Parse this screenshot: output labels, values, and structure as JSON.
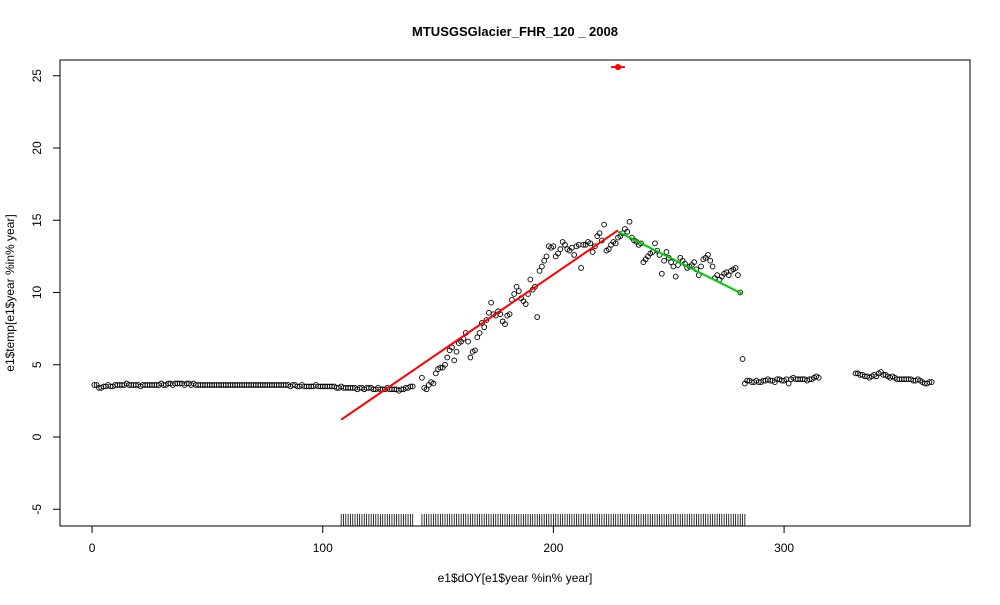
{
  "chart_data": {
    "type": "scatter",
    "title": "MTUSGSGlacier_FHR_120 _ 2008",
    "x_label": "e1$dOY[e1$year %in% year]",
    "y_label": "e1$temp[e1$year %in% year]",
    "xlim": [
      -13.9,
      380.6
    ],
    "ylim": [
      -6.16,
      26.09
    ],
    "xticks": [
      0,
      100,
      200,
      300
    ],
    "yticks": [
      -5,
      0,
      5,
      10,
      15,
      20,
      25
    ],
    "series": [
      {
        "kind": "points",
        "color": "#000000",
        "x": [
          1,
          2,
          3,
          4,
          5,
          6,
          7,
          8,
          9,
          10,
          11,
          12,
          13,
          14,
          15,
          16,
          17,
          18,
          19,
          20,
          21,
          22,
          23,
          24,
          25,
          26,
          27,
          28,
          29,
          30,
          31,
          32,
          33,
          34,
          35,
          36,
          37,
          38,
          39,
          40,
          41,
          42,
          43,
          44,
          45,
          46,
          47,
          48,
          49,
          50,
          51,
          52,
          53,
          54,
          55,
          56,
          57,
          58,
          59,
          60,
          61,
          62,
          63,
          64,
          65,
          66,
          67,
          68,
          69,
          70,
          71,
          72,
          73,
          74,
          75,
          76,
          77,
          78,
          79,
          80,
          81,
          82,
          83,
          84,
          85,
          86,
          87,
          88,
          89,
          90,
          91,
          92,
          93,
          94,
          95,
          96,
          97,
          98,
          99,
          100,
          101,
          102,
          103,
          104,
          105,
          106,
          107,
          108,
          109,
          110,
          111,
          112,
          113,
          114,
          115,
          116,
          117,
          118,
          119,
          120,
          121,
          122,
          123,
          124,
          125,
          126,
          127,
          128,
          129,
          130,
          131,
          132,
          133,
          134,
          135,
          136,
          137,
          138,
          139
        ],
        "values": [
          3.6,
          3.6,
          3.4,
          3.4,
          3.5,
          3.5,
          3.6,
          3.5,
          3.5,
          3.6,
          3.6,
          3.6,
          3.6,
          3.6,
          3.7,
          3.6,
          3.6,
          3.6,
          3.6,
          3.6,
          3.5,
          3.6,
          3.6,
          3.6,
          3.6,
          3.6,
          3.6,
          3.6,
          3.6,
          3.7,
          3.6,
          3.6,
          3.7,
          3.7,
          3.6,
          3.7,
          3.7,
          3.7,
          3.7,
          3.6,
          3.7,
          3.7,
          3.6,
          3.7,
          3.6,
          3.6,
          3.6,
          3.6,
          3.6,
          3.6,
          3.6,
          3.6,
          3.6,
          3.6,
          3.6,
          3.6,
          3.6,
          3.6,
          3.6,
          3.6,
          3.6,
          3.6,
          3.6,
          3.6,
          3.6,
          3.6,
          3.6,
          3.6,
          3.6,
          3.6,
          3.6,
          3.6,
          3.6,
          3.6,
          3.6,
          3.6,
          3.6,
          3.6,
          3.6,
          3.6,
          3.6,
          3.6,
          3.6,
          3.6,
          3.6,
          3.5,
          3.6,
          3.6,
          3.5,
          3.5,
          3.6,
          3.5,
          3.5,
          3.5,
          3.5,
          3.5,
          3.6,
          3.5,
          3.5,
          3.5,
          3.5,
          3.5,
          3.5,
          3.5,
          3.5,
          3.4,
          3.4,
          3.5,
          3.4,
          3.4,
          3.4,
          3.4,
          3.4,
          3.4,
          3.3,
          3.4,
          3.4,
          3.3,
          3.4,
          3.4,
          3.4,
          3.3,
          3.3,
          3.4,
          3.3,
          3.3,
          3.3,
          3.4,
          3.3,
          3.3,
          3.3,
          3.3,
          3.2,
          3.3,
          3.3,
          3.4,
          3.4,
          3.5,
          3.5
        ]
      },
      {
        "kind": "points",
        "color": "#000000",
        "x": [
          143,
          144,
          145,
          146,
          147,
          148,
          149,
          150,
          151,
          152,
          153,
          154,
          155,
          156,
          157,
          158,
          159,
          160,
          161,
          162,
          163,
          164,
          165,
          166,
          167,
          168,
          169,
          170,
          171,
          172,
          173,
          174,
          175,
          176,
          177,
          178,
          179,
          180,
          181,
          182,
          183,
          184,
          185,
          186,
          187,
          188,
          189,
          190,
          191,
          192,
          193,
          194,
          195,
          196,
          197,
          198,
          199,
          200,
          201,
          202,
          203,
          204,
          205,
          206,
          207,
          208,
          209,
          210,
          211,
          212,
          213,
          214,
          215,
          216,
          217,
          218,
          219,
          220,
          221,
          222,
          223,
          224,
          225,
          226,
          227,
          228,
          229,
          230,
          231,
          232,
          233,
          234,
          235,
          236,
          237,
          238,
          239,
          240,
          241,
          242,
          243,
          244,
          245,
          246,
          247,
          248,
          249,
          250,
          251,
          252,
          253,
          254,
          255,
          256,
          257,
          258,
          259,
          260,
          261,
          262,
          263,
          264,
          265,
          266,
          267,
          268,
          269,
          270,
          271,
          272,
          273,
          274,
          275,
          276,
          277,
          278,
          279,
          280,
          281
        ],
        "values": [
          4.1,
          3.4,
          3.3,
          3.6,
          3.8,
          3.7,
          4.4,
          4.7,
          4.8,
          4.8,
          5.0,
          5.5,
          6.0,
          6.2,
          5.3,
          5.9,
          6.5,
          6.6,
          6.8,
          7.2,
          6.6,
          5.5,
          5.9,
          6.0,
          6.9,
          7.2,
          7.9,
          7.6,
          8.1,
          8.6,
          9.3,
          8.5,
          8.4,
          8.7,
          8.5,
          8.0,
          7.8,
          8.4,
          8.5,
          9.5,
          9.9,
          10.4,
          10.1,
          9.6,
          9.4,
          9.2,
          9.9,
          10.9,
          10.2,
          10.4,
          8.3,
          11.5,
          11.8,
          12.2,
          12.5,
          13.2,
          13.1,
          13.2,
          12.5,
          12.7,
          13.0,
          13.5,
          13.3,
          13.0,
          12.9,
          13.1,
          12.6,
          13.2,
          13.3,
          11.7,
          13.3,
          13.3,
          13.5,
          13.4,
          12.8,
          13.2,
          13.9,
          14.1,
          13.6,
          14.7,
          12.9,
          13.0,
          13.3,
          13.5,
          13.4,
          13.8,
          13.9,
          14.1,
          14.4,
          14.2,
          14.9,
          13.8,
          13.6,
          13.5,
          13.3,
          13.4,
          12.1,
          12.3,
          12.5,
          12.7,
          12.8,
          13.4,
          12.9,
          12.6,
          11.3,
          12.2,
          12.8,
          12.4,
          12.1,
          11.8,
          11.1,
          11.9,
          12.4,
          12.2,
          12.0,
          11.7,
          11.8,
          11.9,
          12.1,
          11.6,
          11.2,
          11.8,
          12.3,
          12.4,
          12.6,
          12.2,
          11.8,
          11.0,
          11.2,
          10.9,
          11.1,
          11.3,
          11.4,
          11.2,
          11.5,
          11.6,
          11.7,
          11.2,
          10.0
        ]
      },
      {
        "kind": "points",
        "color": "#000000",
        "x": [
          282,
          283,
          284,
          285,
          286,
          287,
          288,
          289,
          290,
          291,
          292,
          293,
          294,
          295,
          296,
          297,
          298,
          299,
          300,
          301,
          302,
          303,
          304,
          305,
          306,
          307,
          308,
          309,
          310,
          311,
          312,
          313,
          314,
          315
        ],
        "values": [
          5.4,
          3.7,
          3.9,
          3.9,
          3.8,
          3.8,
          3.9,
          3.8,
          3.8,
          3.9,
          3.9,
          4.0,
          3.9,
          3.9,
          3.8,
          4.0,
          4.0,
          3.9,
          3.9,
          4.0,
          3.7,
          4.0,
          4.1,
          4.0,
          4.0,
          4.0,
          4.0,
          4.0,
          3.9,
          4.0,
          4.0,
          4.1,
          4.2,
          4.1
        ]
      },
      {
        "kind": "points",
        "color": "#000000",
        "x": [
          331,
          332,
          333,
          334,
          335,
          336,
          337,
          338,
          339,
          340,
          341,
          342,
          343,
          344,
          345,
          346,
          347,
          348,
          349,
          350,
          351,
          352,
          353,
          354,
          355,
          356,
          357,
          358,
          359,
          360,
          361,
          362,
          363,
          364
        ],
        "values": [
          4.4,
          4.4,
          4.3,
          4.3,
          4.2,
          4.2,
          4.1,
          4.2,
          4.3,
          4.2,
          4.4,
          4.5,
          4.3,
          4.3,
          4.2,
          4.1,
          4.2,
          4.1,
          4.0,
          4.0,
          4.0,
          4.0,
          4.0,
          4.0,
          4.0,
          3.9,
          3.9,
          4.0,
          3.9,
          3.8,
          3.7,
          3.7,
          3.8,
          3.8
        ]
      },
      {
        "kind": "line",
        "color": "#ff0000",
        "x": [
          108,
          228
        ],
        "values": [
          1.2,
          14.3
        ]
      },
      {
        "kind": "line",
        "color": "#00cc00",
        "x": [
          228,
          282
        ],
        "values": [
          14.2,
          9.9
        ]
      },
      {
        "kind": "line",
        "color": "#ff0000",
        "x": [
          225,
          231
        ],
        "values": [
          25.6,
          25.6
        ]
      },
      {
        "kind": "dot",
        "color": "#ff0000",
        "x": [
          228
        ],
        "values": [
          25.6
        ]
      }
    ],
    "rug": [
      108,
      109,
      110,
      111,
      112,
      113,
      114,
      115,
      116,
      117,
      118,
      119,
      120,
      121,
      122,
      123,
      124,
      125,
      126,
      127,
      128,
      129,
      130,
      131,
      132,
      133,
      134,
      135,
      136,
      137,
      138,
      139,
      143,
      144,
      145,
      146,
      147,
      148,
      149,
      150,
      151,
      152,
      153,
      154,
      155,
      156,
      157,
      158,
      159,
      160,
      161,
      162,
      163,
      164,
      165,
      166,
      167,
      168,
      169,
      170,
      171,
      172,
      173,
      174,
      175,
      176,
      177,
      178,
      179,
      180,
      181,
      182,
      183,
      184,
      185,
      186,
      187,
      188,
      189,
      190,
      191,
      192,
      193,
      194,
      195,
      196,
      197,
      198,
      199,
      200,
      201,
      202,
      203,
      204,
      205,
      206,
      207,
      208,
      209,
      210,
      211,
      212,
      213,
      214,
      215,
      216,
      217,
      218,
      219,
      220,
      221,
      222,
      223,
      224,
      225,
      226,
      227,
      228,
      229,
      230,
      231,
      232,
      233,
      234,
      235,
      236,
      237,
      238,
      239,
      240,
      241,
      242,
      243,
      244,
      245,
      246,
      247,
      248,
      249,
      250,
      251,
      252,
      253,
      254,
      255,
      256,
      257,
      258,
      259,
      260,
      261,
      262,
      263,
      264,
      265,
      266,
      267,
      268,
      269,
      270,
      271,
      272,
      273,
      274,
      275,
      276,
      277,
      278,
      279,
      280,
      281,
      282,
      283
    ]
  }
}
